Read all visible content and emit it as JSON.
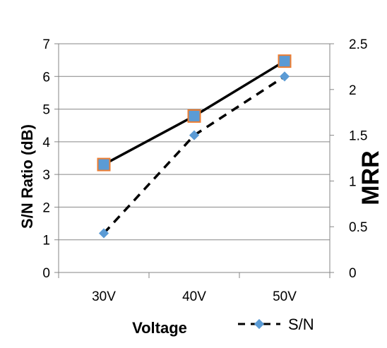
{
  "chart_data": {
    "type": "line",
    "categories": [
      "30V",
      "40V",
      "50V"
    ],
    "xlabel": "Voltage",
    "ylabel": "S/N Ratio (dB)",
    "ylabel2": "MRR",
    "ylim": [
      0,
      7
    ],
    "yticks": [
      "0",
      "1",
      "2",
      "3",
      "4",
      "5",
      "6",
      "7"
    ],
    "ylim2": [
      0,
      2.5
    ],
    "yticks2": [
      "0",
      "0.5",
      "1",
      "1.5",
      "2",
      "2.5"
    ],
    "grid": true,
    "legend_position": "bottom-right",
    "series": [
      {
        "name": "S/N",
        "axis": "left",
        "line_style": "dashed",
        "marker": "diamond",
        "line_color": "#000000",
        "marker_color": "#5B9BD5",
        "values": [
          1.2,
          4.2,
          6.0
        ]
      },
      {
        "axis": "right",
        "line_style": "solid",
        "marker": "square",
        "line_color": "#000000",
        "marker_color": "#5B9BD5",
        "marker_edge_color": "#ED7D31",
        "values": [
          1.18,
          1.71,
          2.31
        ]
      }
    ]
  }
}
